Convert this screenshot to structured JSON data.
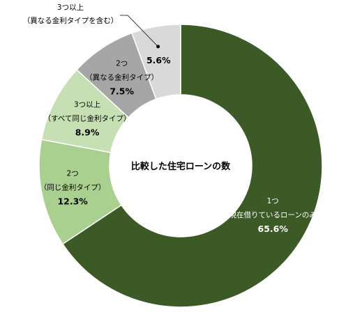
{
  "chart_data": {
    "type": "pie",
    "variant": "donut",
    "center_title": "比較した住宅ローンの数",
    "slices": [
      {
        "line1": "1つ",
        "line2": "（現在借りているローンのみ）",
        "value": 65.6,
        "value_label": "65.6%",
        "color": "#3b5a26",
        "text_color": "#ffffff"
      },
      {
        "line1": "2つ",
        "line2": "（同じ金利タイプ）",
        "value": 12.3,
        "value_label": "12.3%",
        "color": "#a9d08e",
        "text_color": "#000000"
      },
      {
        "line1": "3つ以上",
        "line2": "（すべて同じ金利タイプ）",
        "value": 8.9,
        "value_label": "8.9%",
        "color": "#c6e0b4",
        "text_color": "#000000"
      },
      {
        "line1": "2つ",
        "line2": "（異なる金利タイプ）",
        "value": 7.5,
        "value_label": "7.5%",
        "color": "#a6a6a6",
        "text_color": "#000000"
      },
      {
        "line1": "3つ以上",
        "line2": "（異なる金利タイプを含む）",
        "value": 5.6,
        "value_label": "5.6%",
        "color": "#d9d9d9",
        "text_color": "#000000",
        "callout": true
      }
    ]
  }
}
